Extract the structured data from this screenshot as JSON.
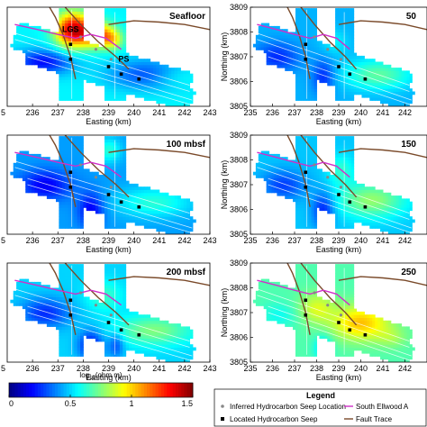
{
  "chart_data": {
    "type": "heatmap",
    "colorbar": {
      "label_prefix": "log",
      "label_sub": "10",
      "label_suffix": "(ohm m)",
      "ticks": [
        "0",
        "0.5",
        "1",
        "1.5"
      ],
      "range": [
        0,
        1.5
      ],
      "colormap": "jet"
    },
    "axes": {
      "xlabel": "Easting (km)",
      "ylabel": "Northing (km)",
      "xlim": [
        235,
        243
      ],
      "ylim": [
        3805,
        3809
      ],
      "xticks": [
        "236",
        "237",
        "238",
        "239",
        "240",
        "241",
        "242",
        "243"
      ],
      "xticks_full": [
        "235",
        "236",
        "237",
        "238",
        "239",
        "240",
        "241",
        "242",
        "243"
      ],
      "yticks": [
        "3805",
        "3806",
        "3807",
        "3808",
        "3809"
      ],
      "left_cut_tick": "5"
    },
    "panels": [
      {
        "title": "Seafloor",
        "labels": [
          {
            "text": "LGS",
            "x": 237.5,
            "y": 3808.0
          },
          {
            "text": "PS",
            "x": 239.6,
            "y": 3806.8
          }
        ]
      },
      {
        "title": "50",
        "labels": []
      },
      {
        "title": "100 mbsf",
        "labels": []
      },
      {
        "title": "150",
        "labels": []
      },
      {
        "title": "200 mbsf",
        "labels": []
      },
      {
        "title": "250",
        "labels": []
      }
    ],
    "inferred_seeps": [
      {
        "x": 237.9,
        "y": 3807.8
      },
      {
        "x": 238.5,
        "y": 3807.3
      },
      {
        "x": 239.1,
        "y": 3806.9
      }
    ],
    "located_seeps": [
      {
        "x": 237.5,
        "y": 3807.5
      },
      {
        "x": 237.5,
        "y": 3806.9
      },
      {
        "x": 239.0,
        "y": 3806.6
      },
      {
        "x": 239.5,
        "y": 3806.3
      },
      {
        "x": 240.2,
        "y": 3806.1
      }
    ],
    "legend": {
      "title": "Legend",
      "items": [
        {
          "label": "Inferred Hydrocarbon Seep Location",
          "marker": "dot",
          "color": "#888888"
        },
        {
          "label": "South Ellwood A",
          "marker": "line",
          "color": "#d12fc9"
        },
        {
          "label": "Located Hydrocarbon Seep",
          "marker": "square",
          "color": "#000000"
        },
        {
          "label": "Fault Trace",
          "marker": "line",
          "color": "#7a4a2a"
        }
      ]
    },
    "colors": {
      "fault": "#7a4a2a",
      "anticline": "#d12fc9",
      "track": "#ffffff"
    }
  }
}
